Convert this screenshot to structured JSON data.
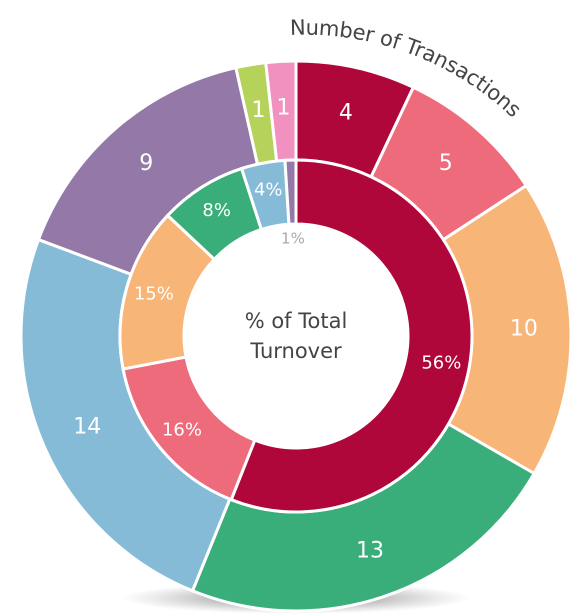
{
  "chart_data": {
    "type": "nested-donut",
    "title": "Number of Transactions",
    "center_label": [
      "% of Total",
      "Turnover"
    ],
    "outer": {
      "values": [
        4,
        5,
        10,
        13,
        14,
        9,
        1,
        1
      ],
      "colors": [
        "#b0073a",
        "#ee6b7b",
        "#f7b577",
        "#3aae7a",
        "#86bbd8",
        "#9479a8",
        "#b5d35b",
        "#f091bf"
      ]
    },
    "inner": {
      "values": [
        56,
        16,
        15,
        8,
        4,
        1
      ],
      "value_labels": [
        "56%",
        "16%",
        "15%",
        "8%",
        "4%",
        "1%"
      ],
      "colors": [
        "#b0073a",
        "#ee6b7b",
        "#f7b577",
        "#3aae7a",
        "#86bbd8",
        "#9479a8"
      ]
    }
  }
}
